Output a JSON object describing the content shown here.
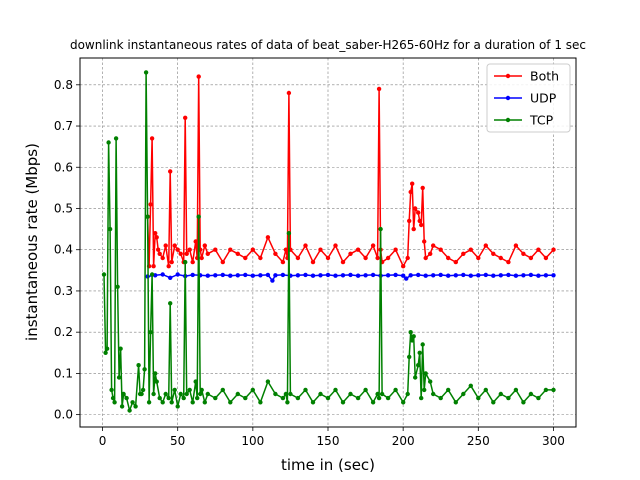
{
  "chart_data": {
    "type": "line",
    "title": "downlink instantaneous rates of data of beat_saber-H265-60Hz for a duration of 1 sec",
    "xlabel": "time in (sec)",
    "ylabel": "instantaneous rate (Mbps)",
    "xlim": [
      -15,
      315
    ],
    "ylim": [
      -0.03,
      0.865
    ],
    "xticks": [
      0,
      50,
      100,
      150,
      200,
      250,
      300
    ],
    "yticks": [
      0.0,
      0.1,
      0.2,
      0.3,
      0.4,
      0.5,
      0.6,
      0.7,
      0.8
    ],
    "grid": true,
    "legend_position": "top-right",
    "series": [
      {
        "name": "Both",
        "color": "#ff0000",
        "x": [
          30,
          31,
          32,
          33,
          34,
          35,
          36,
          37,
          38,
          40,
          42,
          44,
          45,
          46,
          48,
          50,
          52,
          54,
          55,
          56,
          58,
          60,
          62,
          63,
          64,
          65,
          66,
          68,
          70,
          75,
          80,
          85,
          90,
          95,
          100,
          105,
          110,
          115,
          120,
          122,
          123,
          124,
          125,
          130,
          135,
          140,
          145,
          150,
          155,
          160,
          165,
          170,
          175,
          180,
          183,
          184,
          185,
          186,
          190,
          195,
          200,
          203,
          204,
          205,
          206,
          207,
          208,
          210,
          211,
          212,
          213,
          214,
          215,
          218,
          220,
          225,
          230,
          235,
          240,
          245,
          250,
          255,
          260,
          265,
          270,
          275,
          280,
          285,
          290,
          295,
          300
        ],
        "y": [
          0.48,
          0.36,
          0.51,
          0.67,
          0.36,
          0.44,
          0.43,
          0.4,
          0.39,
          0.38,
          0.41,
          0.36,
          0.59,
          0.37,
          0.41,
          0.4,
          0.39,
          0.37,
          0.72,
          0.39,
          0.4,
          0.37,
          0.42,
          0.38,
          0.82,
          0.4,
          0.38,
          0.41,
          0.39,
          0.4,
          0.37,
          0.4,
          0.39,
          0.38,
          0.4,
          0.38,
          0.43,
          0.39,
          0.37,
          0.4,
          0.38,
          0.78,
          0.4,
          0.38,
          0.41,
          0.37,
          0.4,
          0.38,
          0.41,
          0.37,
          0.39,
          0.4,
          0.38,
          0.41,
          0.38,
          0.79,
          0.4,
          0.37,
          0.38,
          0.4,
          0.36,
          0.38,
          0.47,
          0.54,
          0.56,
          0.45,
          0.5,
          0.49,
          0.47,
          0.46,
          0.55,
          0.42,
          0.38,
          0.39,
          0.41,
          0.4,
          0.38,
          0.37,
          0.39,
          0.4,
          0.38,
          0.41,
          0.39,
          0.38,
          0.37,
          0.41,
          0.39,
          0.38,
          0.4,
          0.38,
          0.4
        ]
      },
      {
        "name": "UDP",
        "color": "#0000ff",
        "x": [
          30,
          35,
          40,
          45,
          50,
          55,
          60,
          65,
          70,
          75,
          80,
          85,
          90,
          95,
          100,
          105,
          110,
          113,
          115,
          120,
          125,
          130,
          135,
          140,
          145,
          150,
          155,
          160,
          165,
          170,
          175,
          180,
          185,
          190,
          195,
          200,
          202,
          205,
          210,
          215,
          220,
          225,
          230,
          235,
          240,
          245,
          250,
          255,
          260,
          265,
          270,
          275,
          280,
          285,
          290,
          295,
          300
        ],
        "y": [
          0.335,
          0.338,
          0.34,
          0.332,
          0.34,
          0.336,
          0.339,
          0.338,
          0.337,
          0.338,
          0.339,
          0.337,
          0.338,
          0.339,
          0.337,
          0.338,
          0.339,
          0.325,
          0.338,
          0.339,
          0.337,
          0.338,
          0.339,
          0.337,
          0.338,
          0.339,
          0.337,
          0.338,
          0.339,
          0.337,
          0.338,
          0.339,
          0.337,
          0.338,
          0.339,
          0.337,
          0.33,
          0.338,
          0.339,
          0.337,
          0.338,
          0.339,
          0.337,
          0.338,
          0.339,
          0.337,
          0.338,
          0.339,
          0.337,
          0.338,
          0.339,
          0.337,
          0.338,
          0.339,
          0.337,
          0.338,
          0.338
        ]
      },
      {
        "name": "TCP",
        "color": "#008000",
        "x": [
          1,
          2,
          3,
          4,
          5,
          6,
          7,
          8,
          9,
          10,
          11,
          12,
          13,
          14,
          16,
          18,
          20,
          22,
          24,
          25,
          26,
          27,
          28,
          29,
          30,
          31,
          32,
          33,
          34,
          35,
          36,
          38,
          40,
          42,
          44,
          45,
          46,
          48,
          50,
          52,
          54,
          55,
          56,
          58,
          60,
          62,
          63,
          64,
          65,
          66,
          68,
          70,
          75,
          80,
          85,
          90,
          95,
          100,
          105,
          110,
          115,
          120,
          122,
          123,
          124,
          125,
          130,
          135,
          140,
          145,
          150,
          155,
          160,
          165,
          170,
          175,
          180,
          183,
          184,
          185,
          186,
          190,
          195,
          200,
          203,
          204,
          205,
          206,
          207,
          208,
          210,
          211,
          212,
          213,
          214,
          215,
          218,
          220,
          225,
          230,
          235,
          240,
          245,
          250,
          255,
          260,
          265,
          270,
          275,
          280,
          285,
          290,
          295,
          300
        ],
        "y": [
          0.34,
          0.15,
          0.16,
          0.66,
          0.45,
          0.06,
          0.04,
          0.03,
          0.67,
          0.31,
          0.09,
          0.16,
          0.02,
          0.05,
          0.04,
          0.01,
          0.03,
          0.02,
          0.12,
          0.05,
          0.05,
          0.06,
          0.11,
          0.83,
          0.48,
          0.03,
          0.2,
          0.34,
          0.05,
          0.1,
          0.08,
          0.04,
          0.03,
          0.05,
          0.04,
          0.27,
          0.03,
          0.06,
          0.02,
          0.05,
          0.04,
          0.37,
          0.05,
          0.06,
          0.03,
          0.08,
          0.04,
          0.48,
          0.05,
          0.06,
          0.03,
          0.05,
          0.04,
          0.06,
          0.03,
          0.05,
          0.04,
          0.06,
          0.03,
          0.08,
          0.05,
          0.04,
          0.05,
          0.03,
          0.44,
          0.05,
          0.04,
          0.06,
          0.03,
          0.05,
          0.04,
          0.06,
          0.03,
          0.05,
          0.04,
          0.06,
          0.03,
          0.05,
          0.04,
          0.45,
          0.05,
          0.04,
          0.06,
          0.03,
          0.05,
          0.14,
          0.2,
          0.18,
          0.19,
          0.09,
          0.12,
          0.15,
          0.04,
          0.17,
          0.06,
          0.1,
          0.08,
          0.05,
          0.04,
          0.06,
          0.03,
          0.05,
          0.07,
          0.04,
          0.06,
          0.03,
          0.05,
          0.04,
          0.06,
          0.03,
          0.05,
          0.04,
          0.06,
          0.06
        ]
      }
    ]
  }
}
